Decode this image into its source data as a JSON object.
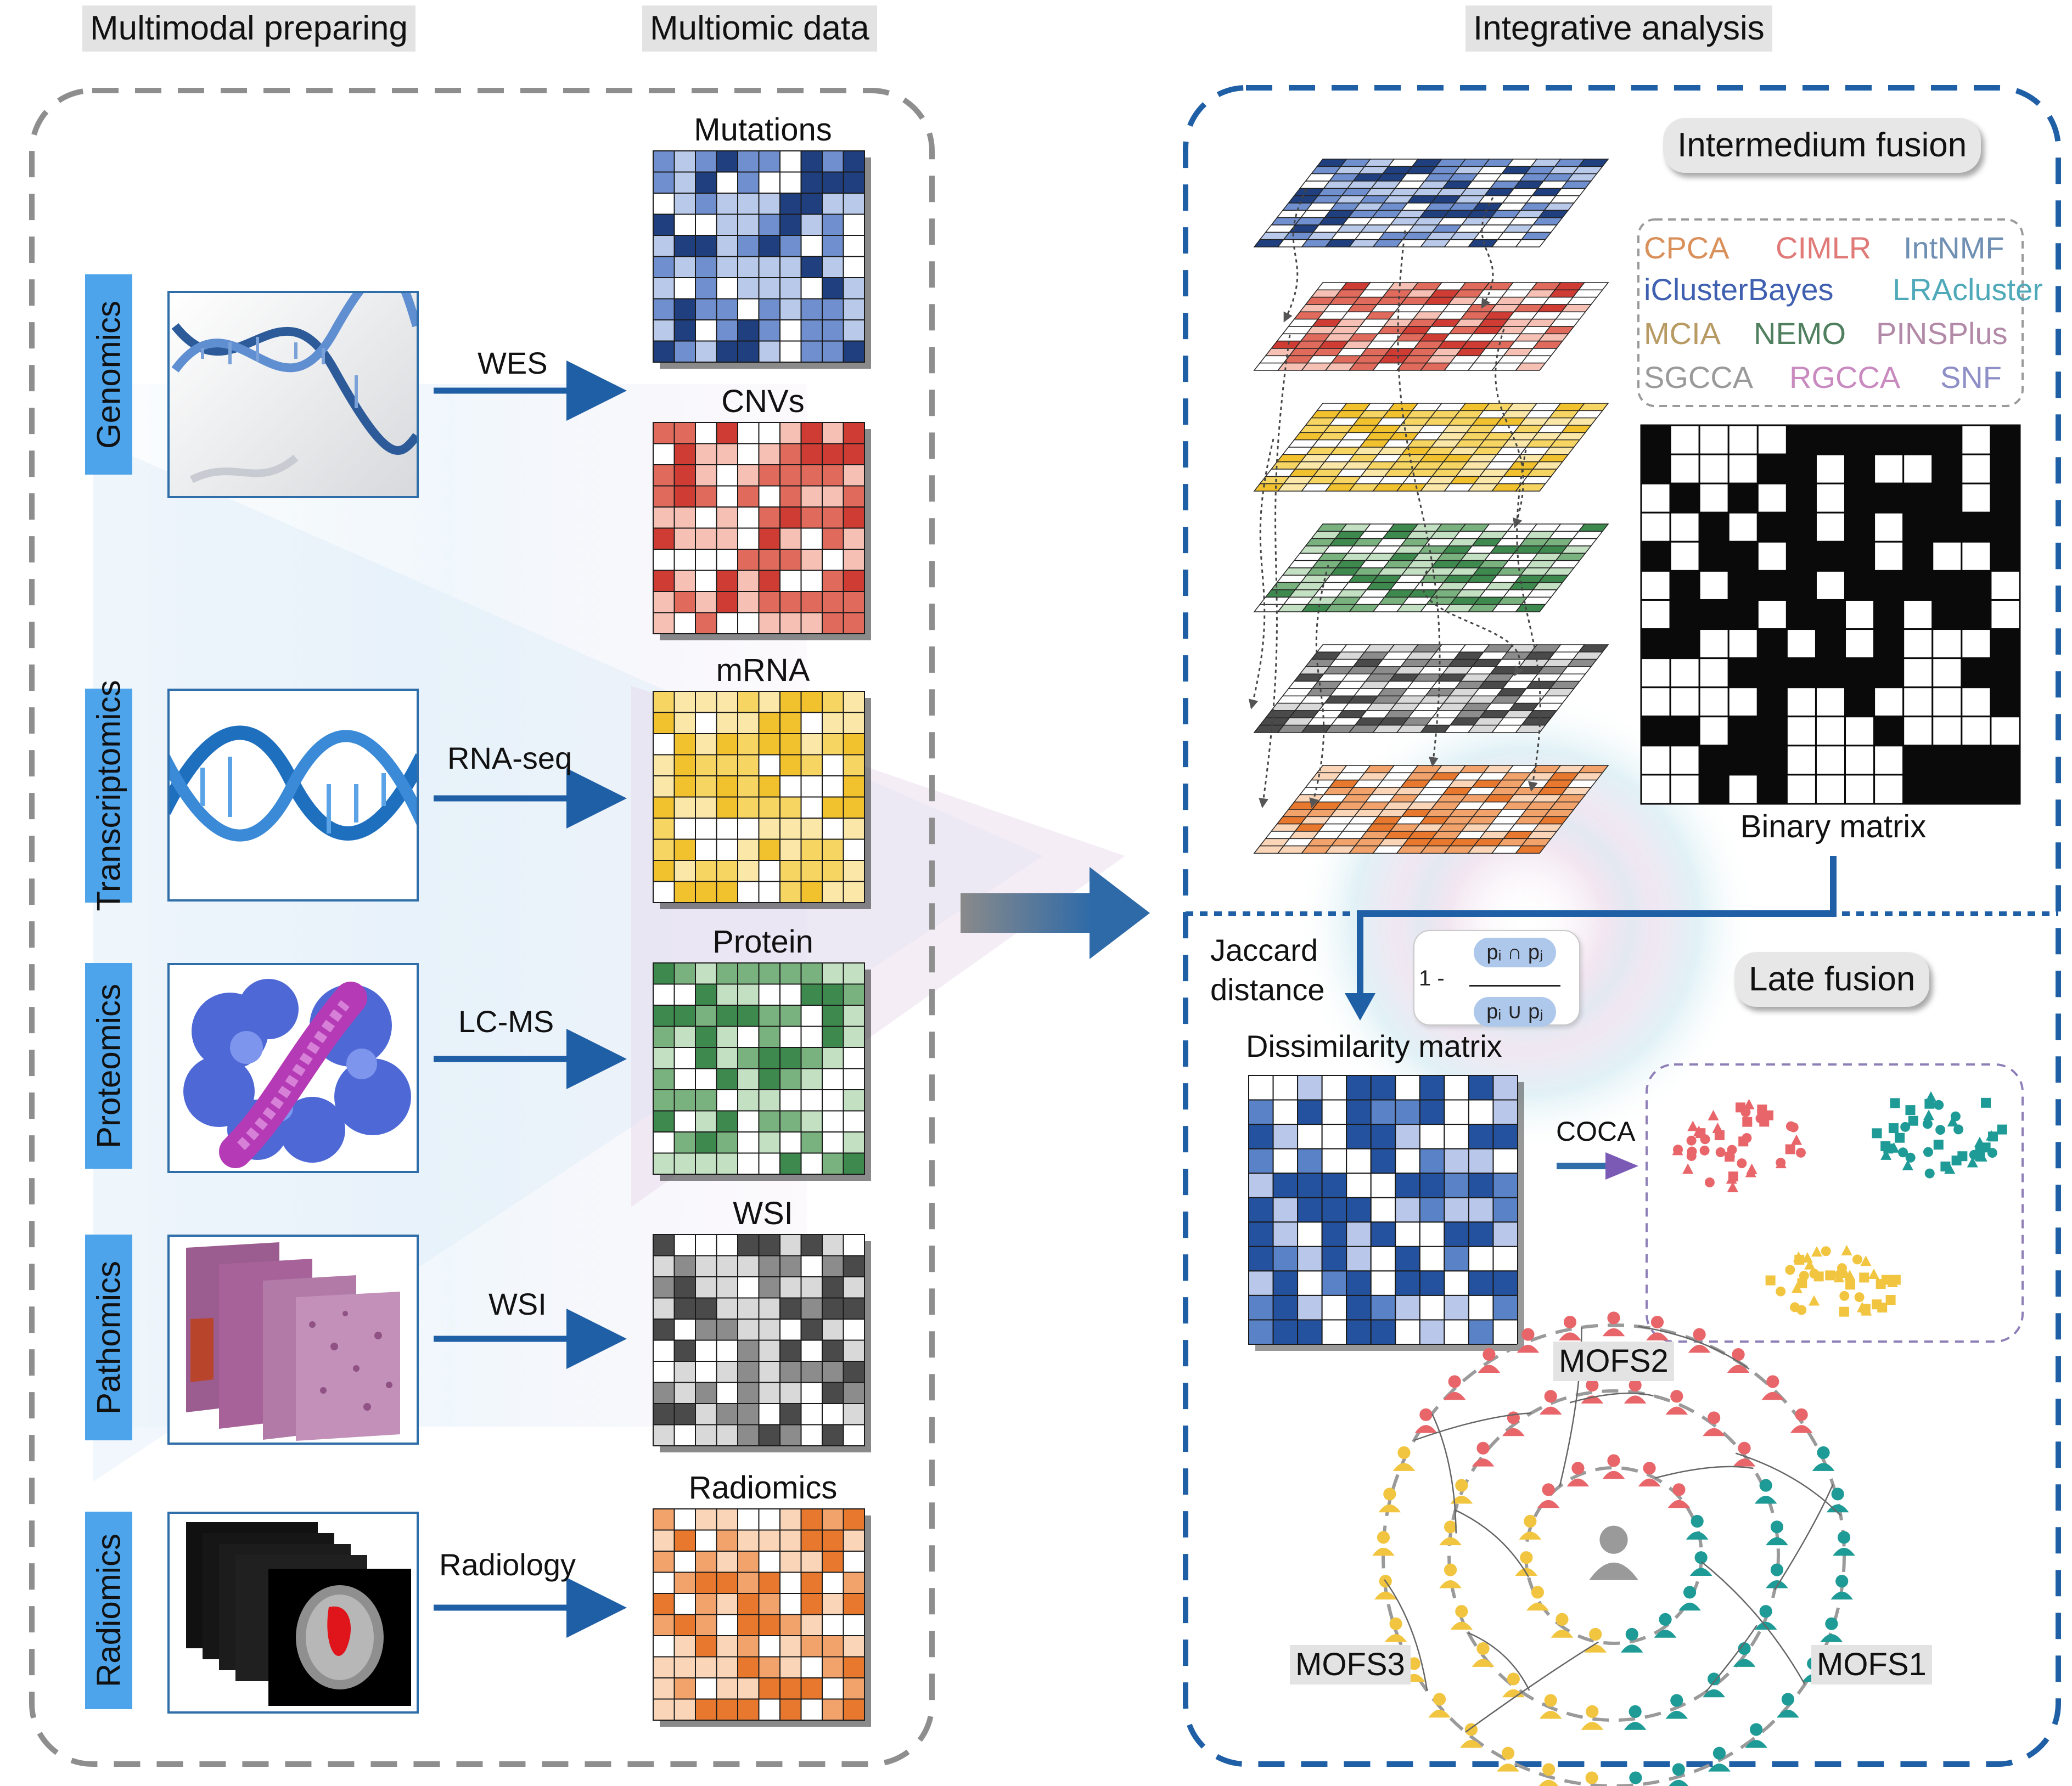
{
  "headers": {
    "left": "Multimodal  preparing",
    "middle": "Multiomic data",
    "right": "Integrative analysis"
  },
  "omics": [
    {
      "name": "Genomics",
      "assay": "WES",
      "data": "Mutations",
      "color": "#1f3f7f",
      "light": "#b8c9ea",
      "mid": "#6f8fcf"
    },
    {
      "name": "Transcriptomics",
      "assay": "RNA-seq",
      "data": "CNVs",
      "color": "#cf3c34",
      "light": "#f6c0b4",
      "mid": "#e06a5b"
    },
    {
      "name": "Proteomics",
      "assay": "LC-MS",
      "data": "mRNA",
      "color": "#f2c22e",
      "light": "#fbe8a8",
      "mid": "#f7d562"
    },
    {
      "name": "Pathomics",
      "assay": "WSI",
      "data": "Protein",
      "color": "#3e8a4e",
      "light": "#c3e0c2",
      "mid": "#79b27f"
    },
    {
      "name": "Radiomics",
      "assay": "Radiology",
      "data": "WSI",
      "color": "#4a4a4a",
      "light": "#d9d9d9",
      "mid": "#8c8c8c"
    }
  ],
  "sixth_matrix": {
    "data": "Radiomics",
    "color": "#e7782e",
    "light": "#fbd5b8",
    "mid": "#f2a36c"
  },
  "intermedium": {
    "title": "Intermedium fusion",
    "methods": [
      {
        "label": "CPCA",
        "color": "#d9905b"
      },
      {
        "label": "CIMLR",
        "color": "#e07a78"
      },
      {
        "label": "IntNMF",
        "color": "#6f8fb3"
      },
      {
        "label": "iClusterBayes",
        "color": "#3f5fb0"
      },
      {
        "label": "LRAcluster",
        "color": "#4fa9b9"
      },
      {
        "label": "MCIA",
        "color": "#b89a63"
      },
      {
        "label": "NEMO",
        "color": "#4f7f5f"
      },
      {
        "label": "PINSPlus",
        "color": "#b28aa8"
      },
      {
        "label": "SGCCA",
        "color": "#9a9a9a"
      },
      {
        "label": "RGCCA",
        "color": "#c98ac0"
      },
      {
        "label": "SNF",
        "color": "#8f8fc8"
      }
    ],
    "binary_label": "Binary matrix"
  },
  "late": {
    "title": "Late fusion",
    "jaccard_line1": "Jaccard",
    "jaccard_line2": "distance",
    "formula_one": "1 -",
    "formula_num": "pᵢ ∩ pⱼ",
    "formula_den": "pᵢ ∪ pⱼ",
    "dissimilarity_label": "Dissimilarity matrix",
    "coca_label": "COCA",
    "cluster_colors": [
      "#e8666a",
      "#1e9b96",
      "#f2c540"
    ],
    "dissimilarity_colors": {
      "dark": "#24529e",
      "mid": "#5a82c6",
      "light": "#b9c8ea"
    }
  },
  "subtypes": {
    "labels": [
      "MOFS2",
      "MOFS3",
      "MOFS1"
    ],
    "colors": {
      "MOFS2": "#e8666a",
      "MOFS3": "#f2c540",
      "MOFS1": "#1e9b96"
    }
  },
  "icons": [
    "dna-helix-icon",
    "rna-helix-icon",
    "protein-structure-icon",
    "histology-slides-icon",
    "mri-slices-icon",
    "person-icon"
  ]
}
